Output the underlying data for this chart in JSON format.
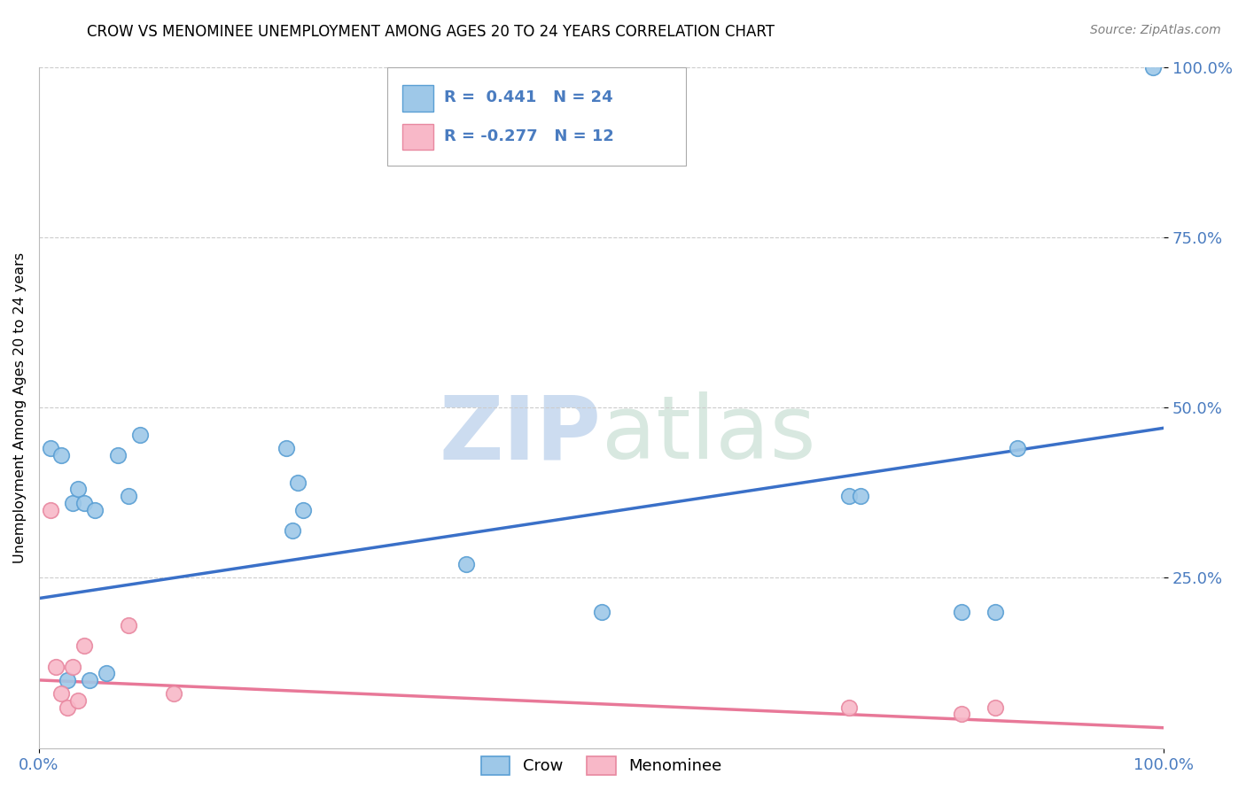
{
  "title": "CROW VS MENOMINEE UNEMPLOYMENT AMONG AGES 20 TO 24 YEARS CORRELATION CHART",
  "source": "Source: ZipAtlas.com",
  "ylabel": "Unemployment Among Ages 20 to 24 years",
  "xlim": [
    0.0,
    1.0
  ],
  "ylim": [
    0.0,
    1.0
  ],
  "ytick_labels": [
    "25.0%",
    "50.0%",
    "75.0%",
    "100.0%"
  ],
  "ytick_positions": [
    0.25,
    0.5,
    0.75,
    1.0
  ],
  "grid_color": "#cccccc",
  "background_color": "#ffffff",
  "crow_color": "#9ec8e8",
  "crow_edge_color": "#5a9fd4",
  "menominee_color": "#f8b8c8",
  "menominee_edge_color": "#e888a0",
  "crow_line_color": "#3a70c8",
  "menominee_line_color": "#e87898",
  "crow_R": 0.441,
  "crow_N": 24,
  "menominee_R": -0.277,
  "menominee_N": 12,
  "crow_x": [
    0.01,
    0.02,
    0.025,
    0.03,
    0.035,
    0.04,
    0.045,
    0.05,
    0.06,
    0.07,
    0.08,
    0.09,
    0.22,
    0.225,
    0.23,
    0.235,
    0.38,
    0.5,
    0.72,
    0.73,
    0.82,
    0.85,
    0.87,
    0.99
  ],
  "crow_y": [
    0.44,
    0.43,
    0.1,
    0.36,
    0.38,
    0.36,
    0.1,
    0.35,
    0.11,
    0.43,
    0.37,
    0.46,
    0.44,
    0.32,
    0.39,
    0.35,
    0.27,
    0.2,
    0.37,
    0.37,
    0.2,
    0.2,
    0.44,
    1.0
  ],
  "menominee_x": [
    0.01,
    0.015,
    0.02,
    0.025,
    0.03,
    0.035,
    0.04,
    0.08,
    0.12,
    0.72,
    0.82,
    0.85
  ],
  "menominee_y": [
    0.35,
    0.12,
    0.08,
    0.06,
    0.12,
    0.07,
    0.15,
    0.18,
    0.08,
    0.06,
    0.05,
    0.06
  ],
  "crow_line_x": [
    0.0,
    1.0
  ],
  "crow_line_y": [
    0.22,
    0.47
  ],
  "menominee_line_x": [
    0.0,
    1.0
  ],
  "menominee_line_y": [
    0.1,
    0.03
  ],
  "watermark_zip": "ZIP",
  "watermark_atlas": "atlas",
  "marker_size": 160,
  "legend_crow_label": "Crow",
  "legend_menominee_label": "Menominee",
  "tick_color": "#4a7cc0",
  "title_fontsize": 12,
  "source_fontsize": 10
}
